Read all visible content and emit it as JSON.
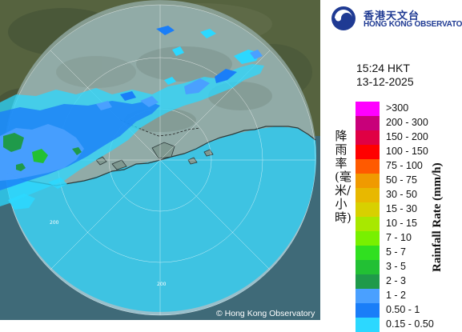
{
  "header": {
    "org_name_zh": "香港天文台",
    "org_name_en": "HONG KONG OBSERVATORY",
    "logo_icon": "hko-logo-icon"
  },
  "timestamp": {
    "time": "15:24 HKT",
    "date": "13-12-2025"
  },
  "legend": {
    "axis_label_en": "Rainfall Rate (mm/h)",
    "axis_label_zh": "降雨率(毫米/小時)",
    "items": [
      {
        "label": ">300",
        "color": "#ff00ff"
      },
      {
        "label": "200 - 300",
        "color": "#c8007a"
      },
      {
        "label": "150 - 200",
        "color": "#e00044"
      },
      {
        "label": "100 - 150",
        "color": "#ff0000"
      },
      {
        "label": "75 - 100",
        "color": "#ff5a00"
      },
      {
        "label": "50 - 75",
        "color": "#f09a00"
      },
      {
        "label": "30 - 50",
        "color": "#e8b800"
      },
      {
        "label": "15 - 30",
        "color": "#d8d000"
      },
      {
        "label": "10 - 15",
        "color": "#a8e800"
      },
      {
        "label": "7 - 10",
        "color": "#78f000"
      },
      {
        "label": "5 - 7",
        "color": "#30e020"
      },
      {
        "label": "3 - 5",
        "color": "#22c034"
      },
      {
        "label": "2 - 3",
        "color": "#1f9a4a"
      },
      {
        "label": "1 - 2",
        "color": "#4aa0ff"
      },
      {
        "label": "0.50 - 1",
        "color": "#1a7ef8"
      },
      {
        "label": "0.15 - 0.50",
        "color": "#2cd8ff"
      }
    ]
  },
  "map": {
    "range_ring_labels": [
      "200",
      "200"
    ],
    "copyright": "Hong Kong Observatory",
    "copyright_symbol": "©"
  }
}
